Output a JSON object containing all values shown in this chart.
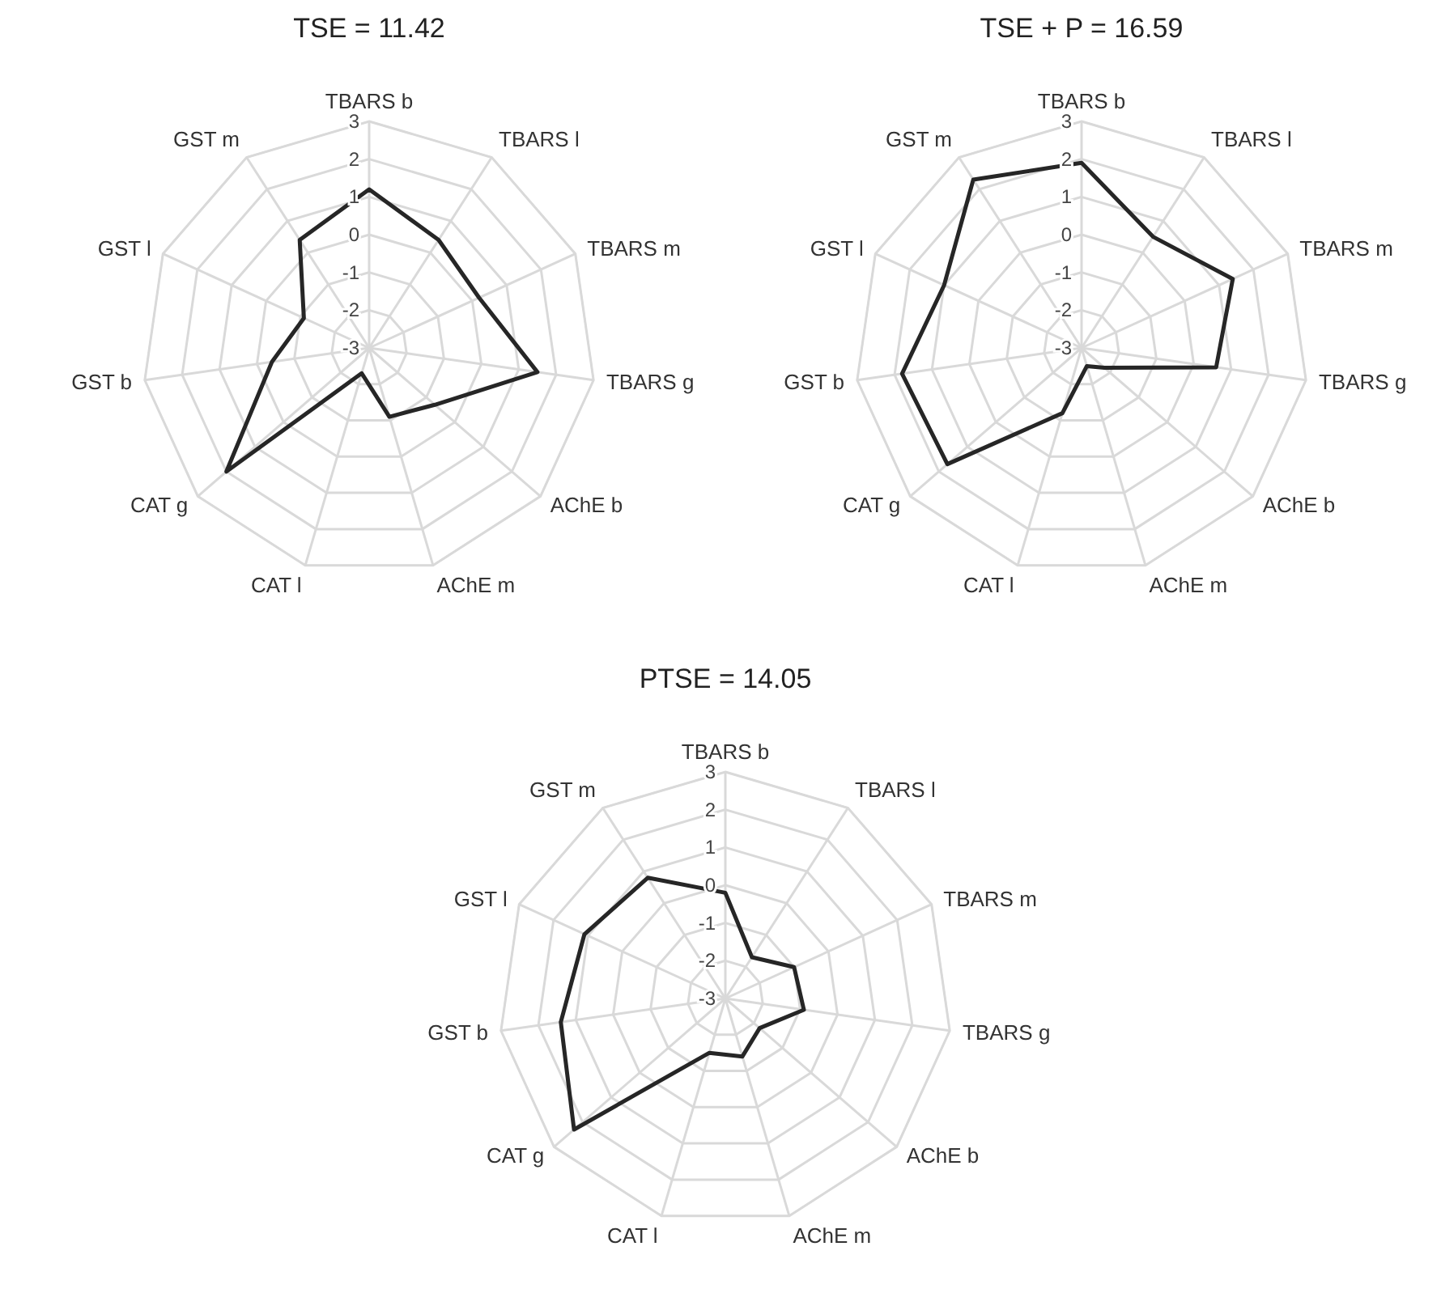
{
  "chart_data": [
    {
      "type": "radar",
      "title": "TSE = 11.42",
      "categories": [
        "TBARS b",
        "TBARS l",
        "TBARS m",
        "TBARS g",
        "AChE b",
        "AChE m",
        "CAT l",
        "CAT g",
        "GST b",
        "GST l",
        "GST m"
      ],
      "series": [
        {
          "color": "#262626",
          "values": [
            1.2,
            0.4,
            0.2,
            1.5,
            -0.7,
            -1.1,
            -2.3,
            2.0,
            -0.4,
            -1.1,
            0.4
          ]
        }
      ],
      "ylim": [
        -3,
        3
      ],
      "yticks": [
        -3,
        -2,
        -1,
        0,
        1,
        2,
        3
      ],
      "grid": true
    },
    {
      "type": "radar",
      "title": "TSE + P = 16.59",
      "categories": [
        "TBARS b",
        "TBARS l",
        "TBARS m",
        "TBARS g",
        "AChE b",
        "AChE m",
        "CAT l",
        "CAT g",
        "GST b",
        "GST l",
        "GST m"
      ],
      "series": [
        {
          "color": "#262626",
          "values": [
            1.9,
            0.5,
            1.4,
            0.6,
            -2.2,
            -2.5,
            -1.2,
            1.7,
            1.8,
            1.0,
            2.3
          ]
        }
      ],
      "ylim": [
        -3,
        3
      ],
      "yticks": [
        -3,
        -2,
        -1,
        0,
        1,
        2,
        3
      ],
      "grid": true
    },
    {
      "type": "radar",
      "title": "PTSE = 14.05",
      "categories": [
        "TBARS b",
        "TBARS l",
        "TBARS m",
        "TBARS g",
        "AChE b",
        "AChE m",
        "CAT l",
        "CAT g",
        "GST b",
        "GST l",
        "GST m"
      ],
      "series": [
        {
          "color": "#262626",
          "values": [
            -0.2,
            -1.7,
            -1.0,
            -0.9,
            -1.8,
            -1.4,
            -1.5,
            2.3,
            1.4,
            1.1,
            0.8
          ]
        }
      ],
      "ylim": [
        -3,
        3
      ],
      "yticks": [
        -3,
        -2,
        -1,
        0,
        1,
        2,
        3
      ],
      "grid": true
    }
  ]
}
